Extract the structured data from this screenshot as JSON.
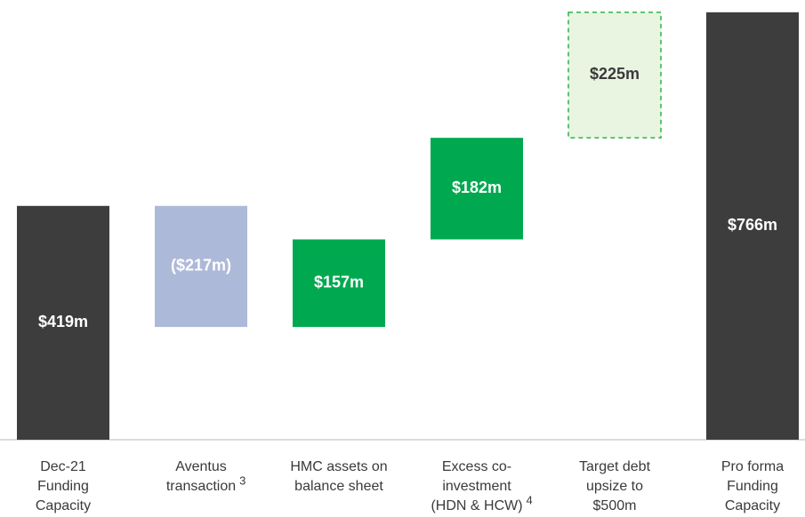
{
  "chart_data": {
    "type": "waterfall",
    "categories": [
      [
        "Dec-21",
        "Funding",
        "Capacity"
      ],
      [
        "Aventus",
        "transaction"
      ],
      [
        "HMC assets on",
        "balance sheet"
      ],
      [
        "Excess co-",
        "investment",
        "(HDN & HCW)"
      ],
      [
        "Target debt",
        "upsize to",
        "$500m"
      ],
      [
        "Pro forma",
        "Funding",
        "Capacity"
      ]
    ],
    "footnotes": [
      null,
      "3",
      null,
      "4",
      null,
      null
    ],
    "values": [
      419,
      -217,
      157,
      182,
      225,
      766
    ],
    "value_labels": [
      "$419m",
      "($217m)",
      "$157m",
      "$182m",
      "$225m",
      "$766m"
    ],
    "totals": [
      true,
      false,
      false,
      false,
      false,
      true
    ],
    "colors": [
      "#3d3d3d",
      "#adb9d9",
      "#00a94f",
      "#00a94f",
      "#e9f5e1",
      "#3d3d3d"
    ],
    "dashed": [
      false,
      false,
      false,
      false,
      true,
      false
    ],
    "dash_color": "#2db34a",
    "ylim": [
      0,
      788
    ]
  }
}
